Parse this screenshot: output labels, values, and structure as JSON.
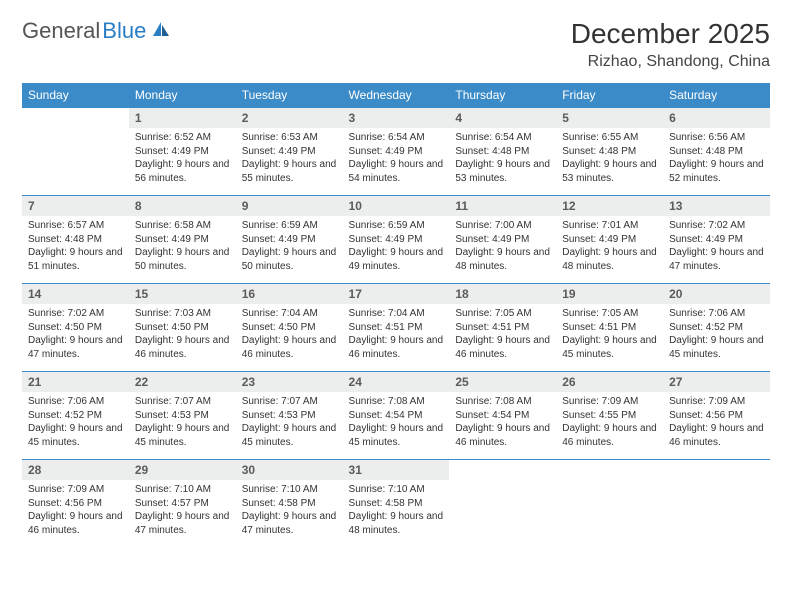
{
  "logo": {
    "text1": "General",
    "text2": "Blue"
  },
  "title": "December 2025",
  "location": "Rizhao, Shandong, China",
  "colors": {
    "header_bg": "#3b8bc9",
    "header_text": "#ffffff",
    "daynum_bg": "#eceded",
    "border": "#3b8bc9",
    "logo_blue": "#2a7ec4"
  },
  "day_headers": [
    "Sunday",
    "Monday",
    "Tuesday",
    "Wednesday",
    "Thursday",
    "Friday",
    "Saturday"
  ],
  "weeks": [
    [
      {
        "n": "",
        "t": ""
      },
      {
        "n": "1",
        "t": "Sunrise: 6:52 AM\nSunset: 4:49 PM\nDaylight: 9 hours and 56 minutes."
      },
      {
        "n": "2",
        "t": "Sunrise: 6:53 AM\nSunset: 4:49 PM\nDaylight: 9 hours and 55 minutes."
      },
      {
        "n": "3",
        "t": "Sunrise: 6:54 AM\nSunset: 4:49 PM\nDaylight: 9 hours and 54 minutes."
      },
      {
        "n": "4",
        "t": "Sunrise: 6:54 AM\nSunset: 4:48 PM\nDaylight: 9 hours and 53 minutes."
      },
      {
        "n": "5",
        "t": "Sunrise: 6:55 AM\nSunset: 4:48 PM\nDaylight: 9 hours and 53 minutes."
      },
      {
        "n": "6",
        "t": "Sunrise: 6:56 AM\nSunset: 4:48 PM\nDaylight: 9 hours and 52 minutes."
      }
    ],
    [
      {
        "n": "7",
        "t": "Sunrise: 6:57 AM\nSunset: 4:48 PM\nDaylight: 9 hours and 51 minutes."
      },
      {
        "n": "8",
        "t": "Sunrise: 6:58 AM\nSunset: 4:49 PM\nDaylight: 9 hours and 50 minutes."
      },
      {
        "n": "9",
        "t": "Sunrise: 6:59 AM\nSunset: 4:49 PM\nDaylight: 9 hours and 50 minutes."
      },
      {
        "n": "10",
        "t": "Sunrise: 6:59 AM\nSunset: 4:49 PM\nDaylight: 9 hours and 49 minutes."
      },
      {
        "n": "11",
        "t": "Sunrise: 7:00 AM\nSunset: 4:49 PM\nDaylight: 9 hours and 48 minutes."
      },
      {
        "n": "12",
        "t": "Sunrise: 7:01 AM\nSunset: 4:49 PM\nDaylight: 9 hours and 48 minutes."
      },
      {
        "n": "13",
        "t": "Sunrise: 7:02 AM\nSunset: 4:49 PM\nDaylight: 9 hours and 47 minutes."
      }
    ],
    [
      {
        "n": "14",
        "t": "Sunrise: 7:02 AM\nSunset: 4:50 PM\nDaylight: 9 hours and 47 minutes."
      },
      {
        "n": "15",
        "t": "Sunrise: 7:03 AM\nSunset: 4:50 PM\nDaylight: 9 hours and 46 minutes."
      },
      {
        "n": "16",
        "t": "Sunrise: 7:04 AM\nSunset: 4:50 PM\nDaylight: 9 hours and 46 minutes."
      },
      {
        "n": "17",
        "t": "Sunrise: 7:04 AM\nSunset: 4:51 PM\nDaylight: 9 hours and 46 minutes."
      },
      {
        "n": "18",
        "t": "Sunrise: 7:05 AM\nSunset: 4:51 PM\nDaylight: 9 hours and 46 minutes."
      },
      {
        "n": "19",
        "t": "Sunrise: 7:05 AM\nSunset: 4:51 PM\nDaylight: 9 hours and 45 minutes."
      },
      {
        "n": "20",
        "t": "Sunrise: 7:06 AM\nSunset: 4:52 PM\nDaylight: 9 hours and 45 minutes."
      }
    ],
    [
      {
        "n": "21",
        "t": "Sunrise: 7:06 AM\nSunset: 4:52 PM\nDaylight: 9 hours and 45 minutes."
      },
      {
        "n": "22",
        "t": "Sunrise: 7:07 AM\nSunset: 4:53 PM\nDaylight: 9 hours and 45 minutes."
      },
      {
        "n": "23",
        "t": "Sunrise: 7:07 AM\nSunset: 4:53 PM\nDaylight: 9 hours and 45 minutes."
      },
      {
        "n": "24",
        "t": "Sunrise: 7:08 AM\nSunset: 4:54 PM\nDaylight: 9 hours and 45 minutes."
      },
      {
        "n": "25",
        "t": "Sunrise: 7:08 AM\nSunset: 4:54 PM\nDaylight: 9 hours and 46 minutes."
      },
      {
        "n": "26",
        "t": "Sunrise: 7:09 AM\nSunset: 4:55 PM\nDaylight: 9 hours and 46 minutes."
      },
      {
        "n": "27",
        "t": "Sunrise: 7:09 AM\nSunset: 4:56 PM\nDaylight: 9 hours and 46 minutes."
      }
    ],
    [
      {
        "n": "28",
        "t": "Sunrise: 7:09 AM\nSunset: 4:56 PM\nDaylight: 9 hours and 46 minutes."
      },
      {
        "n": "29",
        "t": "Sunrise: 7:10 AM\nSunset: 4:57 PM\nDaylight: 9 hours and 47 minutes."
      },
      {
        "n": "30",
        "t": "Sunrise: 7:10 AM\nSunset: 4:58 PM\nDaylight: 9 hours and 47 minutes."
      },
      {
        "n": "31",
        "t": "Sunrise: 7:10 AM\nSunset: 4:58 PM\nDaylight: 9 hours and 48 minutes."
      },
      {
        "n": "",
        "t": ""
      },
      {
        "n": "",
        "t": ""
      },
      {
        "n": "",
        "t": ""
      }
    ]
  ]
}
